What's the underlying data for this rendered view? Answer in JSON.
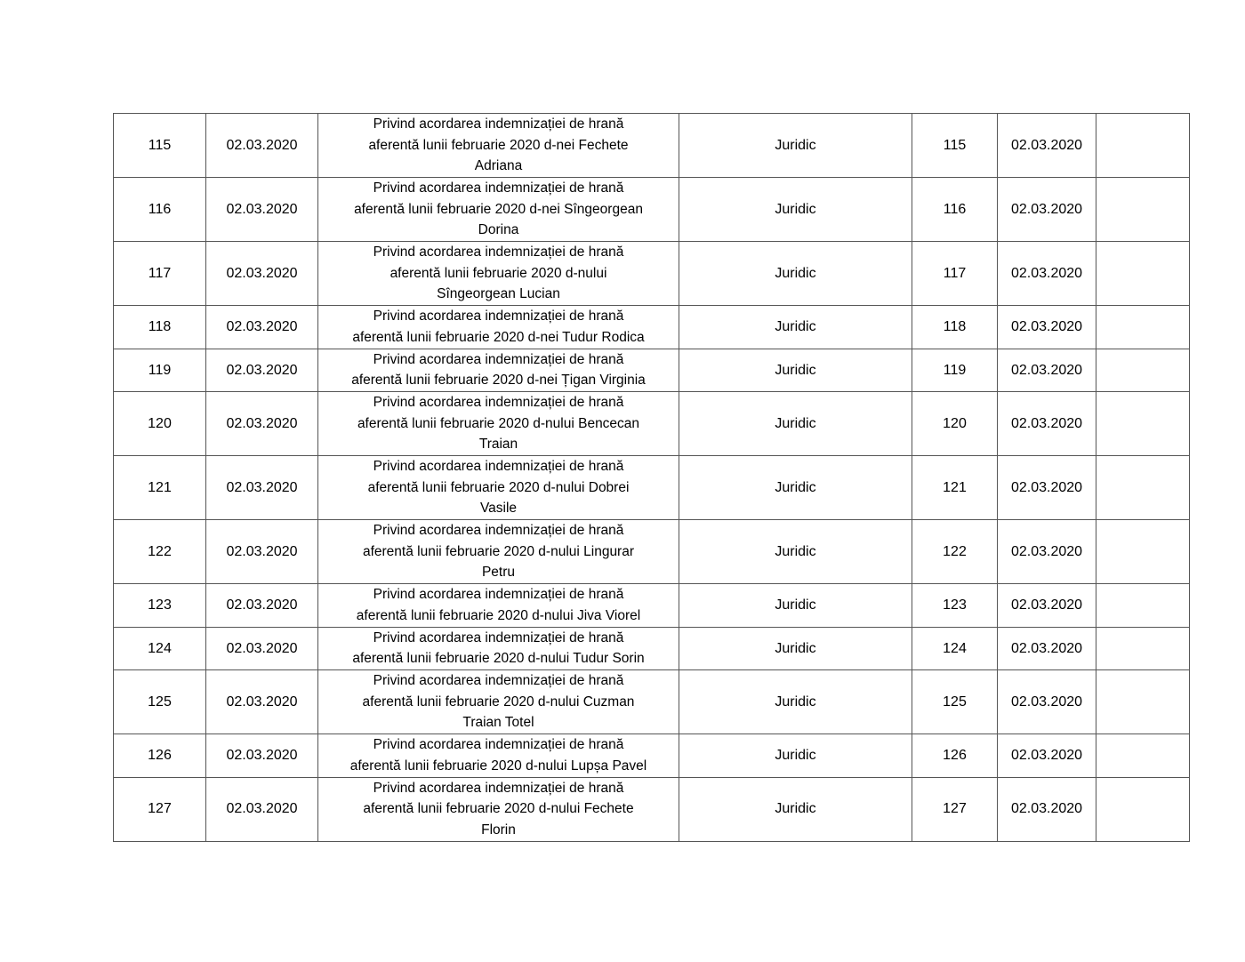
{
  "rows": [
    {
      "nr": "115",
      "date": "02.03.2020",
      "desc": "Privind acordarea indemnizației de hrană\naferentă lunii februarie 2020 d-nei Fechete\nAdriana",
      "dept": "Juridic",
      "nr2": "115",
      "date2": "02.03.2020",
      "extra": ""
    },
    {
      "nr": "116",
      "date": "02.03.2020",
      "desc": "Privind acordarea indemnizației de hrană\naferentă lunii februarie 2020 d-nei Sîngeorgean\nDorina",
      "dept": "Juridic",
      "nr2": "116",
      "date2": "02.03.2020",
      "extra": ""
    },
    {
      "nr": "117",
      "date": "02.03.2020",
      "desc": "Privind acordarea indemnizației de hrană\naferentă lunii februarie 2020 d-nului\nSîngeorgean Lucian",
      "dept": "Juridic",
      "nr2": "117",
      "date2": "02.03.2020",
      "extra": ""
    },
    {
      "nr": "118",
      "date": "02.03.2020",
      "desc": "Privind acordarea indemnizației de hrană\naferentă lunii februarie 2020 d-nei Tudur Rodica",
      "dept": "Juridic",
      "nr2": "118",
      "date2": "02.03.2020",
      "extra": ""
    },
    {
      "nr": "119",
      "date": "02.03.2020",
      "desc": "Privind acordarea indemnizației de hrană\naferentă lunii februarie 2020 d-nei Țigan Virginia",
      "dept": "Juridic",
      "nr2": "119",
      "date2": "02.03.2020",
      "extra": ""
    },
    {
      "nr": "120",
      "date": "02.03.2020",
      "desc": "Privind acordarea indemnizației de hrană\naferentă lunii februarie 2020 d-nului Bencecan\nTraian",
      "dept": "Juridic",
      "nr2": "120",
      "date2": "02.03.2020",
      "extra": ""
    },
    {
      "nr": "121",
      "date": "02.03.2020",
      "desc": "Privind acordarea indemnizației de hrană\naferentă lunii februarie 2020 d-nului Dobrei\nVasile",
      "dept": "Juridic",
      "nr2": "121",
      "date2": "02.03.2020",
      "extra": ""
    },
    {
      "nr": "122",
      "date": "02.03.2020",
      "desc": "Privind acordarea indemnizației de hrană\naferentă lunii februarie 2020 d-nului Lingurar\nPetru",
      "dept": "Juridic",
      "nr2": "122",
      "date2": "02.03.2020",
      "extra": ""
    },
    {
      "nr": "123",
      "date": "02.03.2020",
      "desc": "Privind acordarea indemnizației de hrană\naferentă lunii februarie 2020 d-nului Jiva Viorel",
      "dept": "Juridic",
      "nr2": "123",
      "date2": "02.03.2020",
      "extra": ""
    },
    {
      "nr": "124",
      "date": "02.03.2020",
      "desc": "Privind acordarea indemnizației de hrană\naferentă lunii februarie 2020 d-nului Tudur Sorin",
      "dept": "Juridic",
      "nr2": "124",
      "date2": "02.03.2020",
      "extra": ""
    },
    {
      "nr": "125",
      "date": "02.03.2020",
      "desc": "Privind acordarea indemnizației de hrană\naferentă lunii februarie 2020 d-nului Cuzman\nTraian Totel",
      "dept": "Juridic",
      "nr2": "125",
      "date2": "02.03.2020",
      "extra": ""
    },
    {
      "nr": "126",
      "date": "02.03.2020",
      "desc": "Privind acordarea indemnizației de hrană\naferentă lunii februarie 2020 d-nului Lupșa Pavel",
      "dept": "Juridic",
      "nr2": "126",
      "date2": "02.03.2020",
      "extra": ""
    },
    {
      "nr": "127",
      "date": "02.03.2020",
      "desc": "Privind acordarea indemnizației de hrană\naferentă lunii februarie 2020 d-nului Fechete\nFlorin",
      "dept": "Juridic",
      "nr2": "127",
      "date2": "02.03.2020",
      "extra": ""
    }
  ]
}
